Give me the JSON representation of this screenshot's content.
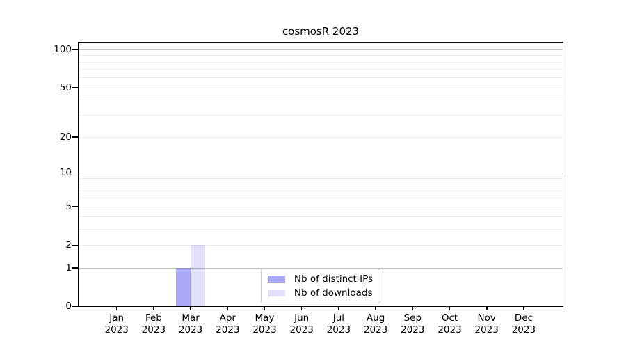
{
  "title": "cosmosR 2023",
  "chart_data": {
    "type": "bar",
    "title": "cosmosR 2023",
    "xlabel": "",
    "ylabel": "",
    "x_months": [
      "Jan",
      "Feb",
      "Mar",
      "Apr",
      "May",
      "Jun",
      "Jul",
      "Aug",
      "Sep",
      "Oct",
      "Nov",
      "Dec"
    ],
    "x_year": "2023",
    "series": [
      {
        "name": "Nb of distinct IPs",
        "color": "rgba(98,98,236,0.55)",
        "color_hex_on_white": "#a9a9f4",
        "values": [
          0,
          0,
          1,
          0,
          0,
          0,
          0,
          0,
          0,
          0,
          0,
          0
        ]
      },
      {
        "name": "Nb of downloads",
        "color": "rgba(98,98,236,0.20)",
        "color_hex_on_white": "#dcdcf9",
        "values": [
          0,
          0,
          2,
          0,
          0,
          0,
          0,
          0,
          0,
          0,
          0,
          0
        ]
      }
    ],
    "y_scale": "log1p",
    "y_ticks": [
      0,
      1,
      2,
      5,
      10,
      20,
      50,
      100
    ],
    "ylim": [
      0,
      112
    ],
    "grid_major_values": [
      1,
      10,
      100
    ],
    "grid_minor_values": [
      2,
      3,
      4,
      5,
      6,
      7,
      8,
      9,
      20,
      30,
      40,
      50,
      60,
      70,
      80,
      90
    ],
    "legend_position": "lower center",
    "grid_on": true,
    "colors": {
      "major_grid": "#c6c6c6",
      "minor_grid": "#ededed",
      "spine": "#000000",
      "text": "#000000",
      "background": "#ffffff"
    }
  }
}
